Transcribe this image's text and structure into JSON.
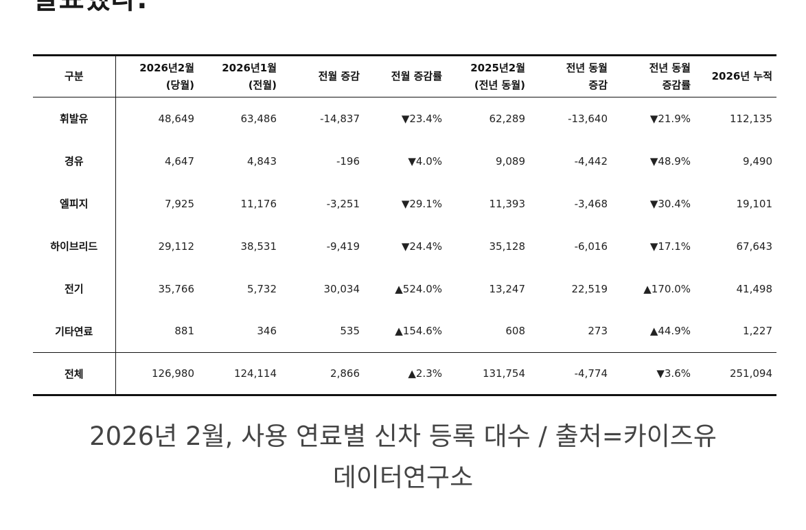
{
  "top_text": "발표했다.",
  "table": {
    "headers": [
      [
        "구분"
      ],
      [
        "2026년2월",
        "(당월)"
      ],
      [
        "2026년1월",
        "(전월)"
      ],
      [
        "전월 증감"
      ],
      [
        "전월 증감률"
      ],
      [
        "2025년2월",
        "(전년 동월)"
      ],
      [
        "전년 동월",
        "증감"
      ],
      [
        "전년 동월",
        "증감률"
      ],
      [
        "2026년 누적"
      ]
    ],
    "rows": [
      {
        "category": "휘발유",
        "cur": "48,649",
        "prev": "63,486",
        "mom": "-14,837",
        "mom_rate": "▼23.4%",
        "mom_dir": "down",
        "ly": "62,289",
        "yoy": "-13,640",
        "yoy_rate": "▼21.9%",
        "yoy_dir": "down",
        "ytd": "112,135"
      },
      {
        "category": "경유",
        "cur": "4,647",
        "prev": "4,843",
        "mom": "-196",
        "mom_rate": "▼4.0%",
        "mom_dir": "down",
        "ly": "9,089",
        "yoy": "-4,442",
        "yoy_rate": "▼48.9%",
        "yoy_dir": "down",
        "ytd": "9,490"
      },
      {
        "category": "엘피지",
        "cur": "7,925",
        "prev": "11,176",
        "mom": "-3,251",
        "mom_rate": "▼29.1%",
        "mom_dir": "down",
        "ly": "11,393",
        "yoy": "-3,468",
        "yoy_rate": "▼30.4%",
        "yoy_dir": "down",
        "ytd": "19,101"
      },
      {
        "category": "하이브리드",
        "cur": "29,112",
        "prev": "38,531",
        "mom": "-9,419",
        "mom_rate": "▼24.4%",
        "mom_dir": "down",
        "ly": "35,128",
        "yoy": "-6,016",
        "yoy_rate": "▼17.1%",
        "yoy_dir": "down",
        "ytd": "67,643"
      },
      {
        "category": "전기",
        "cur": "35,766",
        "prev": "5,732",
        "mom": "30,034",
        "mom_rate": "▲524.0%",
        "mom_dir": "up",
        "ly": "13,247",
        "yoy": "22,519",
        "yoy_rate": "▲170.0%",
        "yoy_dir": "up",
        "ytd": "41,498"
      },
      {
        "category": "기타연료",
        "cur": "881",
        "prev": "346",
        "mom": "535",
        "mom_rate": "▲154.6%",
        "mom_dir": "up",
        "ly": "608",
        "yoy": "273",
        "yoy_rate": "▲44.9%",
        "yoy_dir": "up",
        "ytd": "1,227"
      }
    ],
    "total": {
      "category": "전체",
      "cur": "126,980",
      "prev": "124,114",
      "mom": "2,866",
      "mom_rate": "▲2.3%",
      "mom_dir": "up",
      "ly": "131,754",
      "yoy": "-4,774",
      "yoy_rate": "▼3.6%",
      "yoy_dir": "down",
      "ytd": "251,094"
    }
  },
  "caption": {
    "line1": "2026년 2월, 사용 연료별 신차 등록 대수 / 출처=카이즈유",
    "line2": "데이터연구소"
  },
  "colors": {
    "decrease": "#1f3fb8",
    "increase": "#d8141c"
  }
}
